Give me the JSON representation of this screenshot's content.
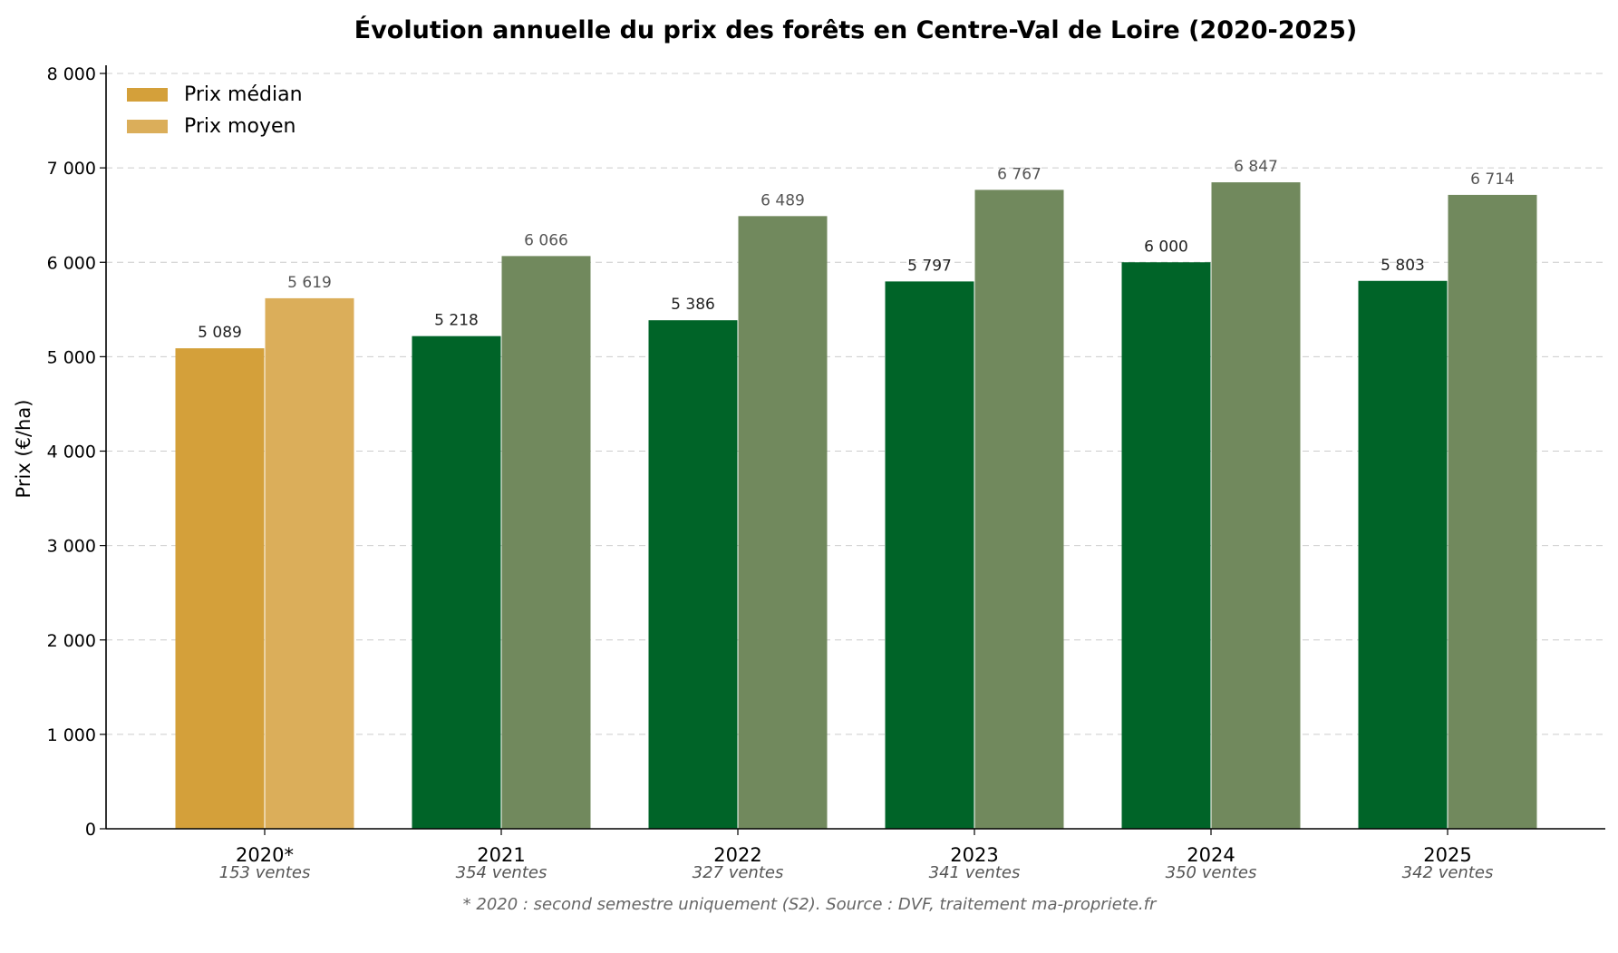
{
  "chart_data": {
    "type": "bar",
    "title": "Évolution annuelle du prix des forêts en Centre-Val de Loire (2020-2025)",
    "xlabel": "",
    "ylabel": "Prix (€/ha)",
    "ylim": [
      0,
      8000
    ],
    "yticks": [
      0,
      1000,
      2000,
      3000,
      4000,
      5000,
      6000,
      7000,
      8000
    ],
    "ytick_labels": [
      "0",
      "1 000",
      "2 000",
      "3 000",
      "4 000",
      "5 000",
      "6 000",
      "7 000",
      "8 000"
    ],
    "categories": [
      "2020*",
      "2021",
      "2022",
      "2023",
      "2024",
      "2025"
    ],
    "sales_counts": [
      "153 ventes",
      "354 ventes",
      "327 ventes",
      "341 ventes",
      "350 ventes",
      "342 ventes"
    ],
    "series": [
      {
        "name": "Prix médian",
        "values": [
          5089,
          5218,
          5386,
          5797,
          6000,
          5803
        ],
        "value_labels": [
          "5 089",
          "5 218",
          "5 386",
          "5 797",
          "6 000",
          "5 803"
        ],
        "colors": [
          "#d4a03a",
          "#006428",
          "#006428",
          "#006428",
          "#006428",
          "#006428"
        ]
      },
      {
        "name": "Prix moyen",
        "values": [
          5619,
          6066,
          6489,
          6767,
          6847,
          6714
        ],
        "value_labels": [
          "5 619",
          "6 066",
          "6 489",
          "6 767",
          "6 847",
          "6 714"
        ],
        "colors": [
          "#dbae5a",
          "#71895d",
          "#71895d",
          "#71895d",
          "#71895d",
          "#71895d"
        ]
      }
    ],
    "legend": {
      "placement": "top-left",
      "entries": [
        {
          "label": "Prix médian",
          "color": "#d4a03a"
        },
        {
          "label": "Prix moyen",
          "color": "#dbae5a"
        }
      ]
    },
    "grid": {
      "y": true,
      "x": false,
      "style": "dashed"
    },
    "footnote": "* 2020 : second semestre uniquement (S2). Source : DVF, traitement ma-propriete.fr"
  }
}
